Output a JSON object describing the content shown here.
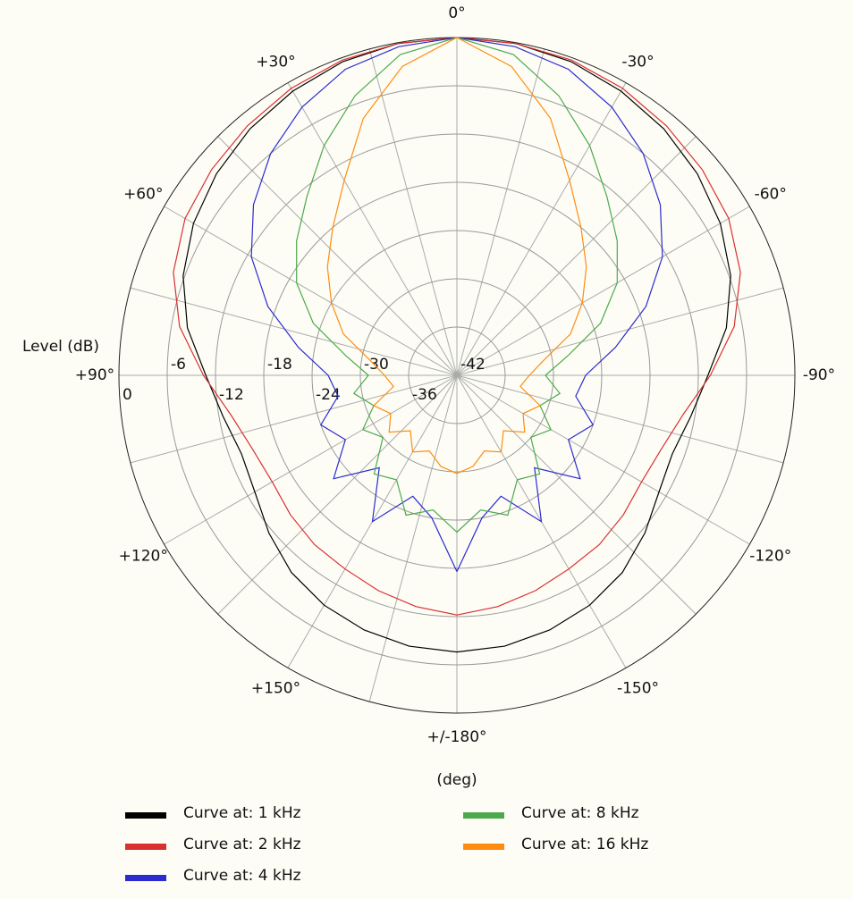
{
  "chart_data": {
    "type": "polar",
    "axis_label": "Level  (dB)",
    "angle_label": "(deg)",
    "x": [
      -180,
      -170,
      -160,
      -150,
      -140,
      -130,
      -120,
      -110,
      -100,
      -90,
      -80,
      -70,
      -60,
      -50,
      -40,
      -30,
      -20,
      -10,
      0,
      10,
      20,
      30,
      40,
      50,
      60,
      70,
      80,
      90,
      100,
      110,
      120,
      130,
      140,
      150,
      160,
      170,
      180
    ],
    "rlim": [
      -42,
      0
    ],
    "rticks": [
      0,
      -6,
      -12,
      -18,
      -24,
      -30,
      -36,
      -42
    ],
    "xticks": [
      {
        "value": 0,
        "label": "0°"
      },
      {
        "value": 30,
        "label": "+30°"
      },
      {
        "value": 60,
        "label": "+60°"
      },
      {
        "value": 90,
        "label": "+90°"
      },
      {
        "value": 120,
        "label": "+120°"
      },
      {
        "value": 150,
        "label": "+150°"
      },
      {
        "value": 180,
        "label": "+/-180°"
      },
      {
        "value": -150,
        "label": "-150°"
      },
      {
        "value": -120,
        "label": "-120°"
      },
      {
        "value": -90,
        "label": "-90°"
      },
      {
        "value": -60,
        "label": "-60°"
      },
      {
        "value": -30,
        "label": "-30°"
      }
    ],
    "series": [
      {
        "name": "Curve at: 1 kHz",
        "color": "#000000",
        "values": [
          -7.6,
          -7.8,
          -8.3,
          -9,
          -10,
          -11.5,
          -13,
          -13.5,
          -12.5,
          -10.8,
          -8,
          -5.8,
          -4.2,
          -3,
          -2,
          -1.2,
          -0.5,
          -0.1,
          0,
          -0.1,
          -0.5,
          -1.2,
          -2,
          -3,
          -4.2,
          -5.8,
          -8,
          -10.8,
          -12.5,
          -13.5,
          -13,
          -11.5,
          -10,
          -9,
          -8.3,
          -7.8,
          -7.6
        ]
      },
      {
        "name": "Curve at: 2 kHz",
        "color": "#d93030",
        "values": [
          -12.2,
          -12.8,
          -13.5,
          -14.2,
          -14.5,
          -15,
          -15.5,
          -15,
          -13.5,
          -10.5,
          -7,
          -4.5,
          -3,
          -2.2,
          -1.5,
          -0.8,
          -0.3,
          -0.1,
          0,
          -0.1,
          -0.3,
          -0.8,
          -1.5,
          -2.2,
          -3,
          -4.5,
          -7,
          -10.5,
          -13.5,
          -15,
          -15.5,
          -15,
          -14.5,
          -14.2,
          -13.5,
          -12.8,
          -12.2
        ]
      },
      {
        "name": "Curve at: 4 kHz",
        "color": "#2b2bd0",
        "values": [
          -17.6,
          -24,
          -26,
          -21,
          -27,
          -22,
          -26,
          -24,
          -27,
          -26,
          -22,
          -17,
          -12.5,
          -9,
          -6,
          -3.5,
          -1.5,
          -0.5,
          0,
          -0.5,
          -1.5,
          -3.5,
          -6,
          -9,
          -12.5,
          -17,
          -22,
          -26,
          -27,
          -24,
          -26,
          -22,
          -27,
          -21,
          -26,
          -24,
          -17.6
        ]
      },
      {
        "name": "Curve at: 8 kHz",
        "color": "#4caa4c",
        "values": [
          -22.5,
          -25,
          -23.5,
          -27,
          -26,
          -30,
          -28.5,
          -31,
          -29,
          -31,
          -28,
          -23,
          -19,
          -16,
          -13,
          -9,
          -5,
          -1.5,
          0,
          -1.5,
          -5,
          -9,
          -13,
          -16,
          -19,
          -23,
          -28,
          -31,
          -29,
          -31,
          -28.5,
          -30,
          -26,
          -27,
          -23.5,
          -25,
          -22.5
        ]
      },
      {
        "name": "Curve at: 16 kHz",
        "color": "#ff8c10",
        "values": [
          -29.8,
          -30.5,
          -32,
          -31,
          -33,
          -31,
          -32.5,
          -31,
          -34,
          -33,
          -31,
          -27,
          -24,
          -21,
          -18,
          -14,
          -8,
          -3,
          0,
          -3,
          -8,
          -14,
          -18,
          -21,
          -24,
          -27,
          -31,
          -33,
          -34,
          -31,
          -32.5,
          -31,
          -33,
          -31,
          -32,
          -30.5,
          -29.8
        ]
      }
    ]
  }
}
